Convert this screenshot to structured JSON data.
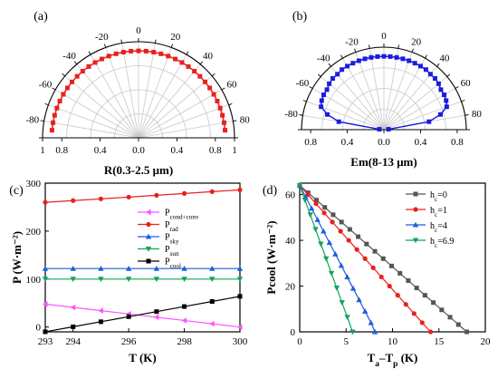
{
  "chart_data": [
    {
      "panel_label": "(a)",
      "type": "polar",
      "xlabel": "R(0.3-2.5 μm)",
      "angle_ticks": [
        "-80",
        "-60",
        "-40",
        "-20",
        "0",
        "20",
        "40",
        "60",
        "80"
      ],
      "radial_ticks": [
        "1",
        "0.8",
        "0.4",
        "0.0",
        "0.4",
        "0.8",
        "1"
      ],
      "r_max": 1,
      "series": [
        {
          "color": "#e8201e",
          "angles": [
            -85,
            -80,
            -75,
            -70,
            -65,
            -60,
            -55,
            -50,
            -45,
            -40,
            -35,
            -30,
            -25,
            -20,
            -15,
            -10,
            -5,
            0,
            5,
            10,
            15,
            20,
            25,
            30,
            35,
            40,
            45,
            50,
            55,
            60,
            65,
            70,
            75,
            80,
            85
          ],
          "values": [
            0.905,
            0.905,
            0.905,
            0.905,
            0.905,
            0.905,
            0.905,
            0.905,
            0.905,
            0.905,
            0.905,
            0.905,
            0.905,
            0.905,
            0.905,
            0.905,
            0.905,
            0.905,
            0.905,
            0.905,
            0.905,
            0.905,
            0.905,
            0.905,
            0.905,
            0.905,
            0.905,
            0.905,
            0.905,
            0.905,
            0.905,
            0.905,
            0.905,
            0.905,
            0.905
          ]
        }
      ]
    },
    {
      "panel_label": "(b)",
      "type": "polar",
      "xlabel": "Em(8-13 μm)",
      "angle_ticks": [
        "-80",
        "-60",
        "-40",
        "-20",
        "0",
        "20",
        "40",
        "60",
        "80"
      ],
      "radial_ticks": [
        "0.8",
        "0.4",
        "0.0",
        "0.4",
        "0.8"
      ],
      "r_max": 0.9,
      "series": [
        {
          "color": "#1c1ce0",
          "angles": [
            -85,
            -80,
            -75,
            -70,
            -65,
            -60,
            -55,
            -50,
            -45,
            -40,
            -35,
            -30,
            -25,
            -20,
            -15,
            -10,
            -5,
            0,
            5,
            10,
            15,
            20,
            25,
            30,
            35,
            40,
            45,
            50,
            55,
            60,
            65,
            70,
            75,
            80,
            85
          ],
          "values": [
            0.05,
            0.5,
            0.64,
            0.73,
            0.75,
            0.76,
            0.76,
            0.78,
            0.79,
            0.79,
            0.8,
            0.8,
            0.8,
            0.8,
            0.8,
            0.8,
            0.8,
            0.8,
            0.8,
            0.8,
            0.8,
            0.8,
            0.8,
            0.8,
            0.8,
            0.79,
            0.79,
            0.78,
            0.76,
            0.76,
            0.75,
            0.73,
            0.64,
            0.5,
            0.05
          ]
        }
      ]
    },
    {
      "panel_label": "(c)",
      "type": "line",
      "xlabel": "T (K)",
      "ylabel": "P (W·m⁻²)",
      "xlim": [
        293,
        300
      ],
      "ylim": [
        -10,
        300
      ],
      "xticks": [
        "293",
        "294",
        "296",
        "298",
        "300"
      ],
      "yticks": [
        "0",
        "100",
        "200",
        "300"
      ],
      "legend_position": "right",
      "x": [
        293,
        294,
        295,
        296,
        297,
        298,
        299,
        300
      ],
      "series": [
        {
          "name": "P",
          "sub": "cond+conv",
          "color": "#ff55ff",
          "marker": "tri-left",
          "values": [
            47.9,
            41.0,
            34.2,
            27.4,
            20.5,
            13.7,
            6.8,
            0
          ]
        },
        {
          "name": "P",
          "sub": "rad",
          "color": "#e8201e",
          "marker": "circle",
          "values": [
            260,
            263.6,
            267.3,
            271,
            274.7,
            278.5,
            282.3,
            286
          ]
        },
        {
          "name": "P",
          "sub": "sky",
          "color": "#1c5fdc",
          "marker": "tri-up",
          "values": [
            122,
            122,
            122,
            122,
            122,
            122,
            122,
            122
          ]
        },
        {
          "name": "P",
          "sub": "sun",
          "color": "#12a35a",
          "marker": "tri-down",
          "values": [
            100,
            100,
            100,
            100,
            100,
            100,
            100,
            100
          ]
        },
        {
          "name": "P",
          "sub": "cool",
          "color": "#000000",
          "marker": "square",
          "values": [
            -9.9,
            0.6,
            11.1,
            21.6,
            32.2,
            42.8,
            53.3,
            64
          ]
        }
      ]
    },
    {
      "panel_label": "(d)",
      "type": "line",
      "xlabel": "T_a–T_p (K)",
      "ylabel": "Pcool (W·m⁻²)",
      "xlim": [
        0,
        20
      ],
      "ylim": [
        0,
        65
      ],
      "xticks": [
        "0",
        "5",
        "10",
        "15",
        "20"
      ],
      "yticks": [
        "0",
        "20",
        "40",
        "60"
      ],
      "legend_position": "top-right",
      "series": [
        {
          "name": "h",
          "sub": "c",
          "suffix": "=0",
          "color": "#555555",
          "marker": "square",
          "x": [
            0,
            0.9,
            1.8,
            2.7,
            3.6,
            4.5,
            5.4,
            6.3,
            7.2,
            8.1,
            9.0,
            9.9,
            10.8,
            11.7,
            12.6,
            13.5,
            14.4,
            15.3,
            16.2,
            17.1,
            18.0
          ],
          "values": [
            64,
            60.8,
            57.6,
            54.4,
            51.2,
            48,
            44.8,
            41.6,
            38.4,
            35.2,
            32,
            28.8,
            25.6,
            22.4,
            19.2,
            16,
            12.8,
            9.6,
            6.4,
            3.2,
            0
          ]
        },
        {
          "name": "h",
          "sub": "c",
          "suffix": "=1",
          "color": "#e8201e",
          "marker": "circle",
          "x": [
            0,
            0.88,
            1.76,
            2.64,
            3.52,
            4.4,
            5.28,
            6.16,
            7.04,
            7.92,
            8.8,
            9.68,
            10.56,
            11.44,
            12.32,
            13.2,
            14.1
          ],
          "values": [
            64,
            60,
            56,
            52,
            48,
            44,
            40,
            36,
            32,
            28,
            24,
            20,
            16,
            12,
            8,
            4,
            0
          ]
        },
        {
          "name": "h",
          "sub": "c",
          "suffix": "=4",
          "color": "#1c5fdc",
          "marker": "tri-up",
          "x": [
            0,
            0.64,
            1.28,
            1.92,
            2.56,
            3.2,
            3.84,
            4.48,
            5.12,
            5.76,
            6.4,
            7.04,
            7.68,
            8.1
          ],
          "values": [
            64,
            59,
            54,
            49,
            44,
            39,
            34,
            29,
            24,
            19,
            14,
            9,
            4,
            0
          ]
        },
        {
          "name": "h",
          "sub": "c",
          "suffix": "=6.9",
          "color": "#12a35a",
          "marker": "tri-down",
          "x": [
            0,
            0.57,
            1.14,
            1.71,
            2.28,
            2.85,
            3.42,
            3.99,
            4.56,
            5.13,
            5.7
          ],
          "values": [
            64,
            57.6,
            51.2,
            44.8,
            38.4,
            32,
            25.6,
            19.2,
            12.8,
            6.4,
            0
          ]
        }
      ]
    }
  ]
}
